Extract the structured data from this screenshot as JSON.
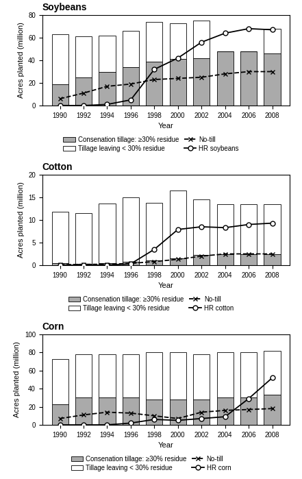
{
  "chart_data": [
    {
      "type": "bar",
      "stacked": true,
      "title": "Soybeans",
      "x_label": "Year",
      "y_label": "Acres planted (million)",
      "x": [
        1990,
        1992,
        1994,
        1996,
        1998,
        2000,
        2002,
        2004,
        2006,
        2008
      ],
      "xlim": [
        1988.5,
        2009.5
      ],
      "xticks": [
        1990,
        1992,
        1994,
        1996,
        1998,
        2000,
        2002,
        2004,
        2006,
        2008
      ],
      "ylim": [
        0,
        80
      ],
      "yticks": [
        0,
        20,
        40,
        60,
        80
      ],
      "legend": "below",
      "series": [
        {
          "name": "Consenation tillage: ≥30% residue",
          "type": "bar",
          "color": "#aaaaaa",
          "values": [
            19,
            25,
            30,
            34,
            39,
            41,
            42,
            48,
            48,
            46
          ]
        },
        {
          "name": "Tillage leaving < 30% residue",
          "type": "bar",
          "color": "#ffffff",
          "values": [
            44,
            36,
            32,
            32,
            35,
            32,
            33,
            0,
            0,
            22
          ]
        },
        {
          "name": "No-till",
          "type": "line",
          "color": "#000000",
          "marker": "x",
          "line_style": "dashed",
          "values": [
            6,
            11,
            17,
            19,
            23,
            24,
            25,
            28,
            30,
            30
          ]
        },
        {
          "name": "HR soybeans",
          "type": "line",
          "color": "#000000",
          "marker": "o",
          "line_style": "solid",
          "values": [
            0,
            0,
            1,
            5,
            32,
            42,
            56,
            64,
            68,
            67
          ]
        }
      ]
    },
    {
      "type": "bar",
      "stacked": true,
      "title": "Cotton",
      "x_label": "Year",
      "y_label": "Acres planted (million)",
      "x": [
        1990,
        1992,
        1994,
        1996,
        1998,
        2000,
        2002,
        2004,
        2006,
        2008
      ],
      "xlim": [
        1988.5,
        2009.5
      ],
      "xticks": [
        1990,
        1992,
        1994,
        1996,
        1998,
        2000,
        2002,
        2004,
        2006,
        2008
      ],
      "ylim": [
        0,
        20
      ],
      "yticks": [
        0,
        5,
        10,
        15,
        20
      ],
      "legend": "below",
      "series": [
        {
          "name": "Consenation tillage: ≥30% residue",
          "type": "bar",
          "color": "#aaaaaa",
          "values": [
            0.4,
            0.3,
            0.5,
            0.7,
            1.0,
            1.5,
            2.2,
            2.5,
            2.5,
            2.5
          ]
        },
        {
          "name": "Tillage leaving < 30% residue",
          "type": "bar",
          "color": "#ffffff",
          "values": [
            11.4,
            11.2,
            13.2,
            14.3,
            12.8,
            15.0,
            12.3,
            11.0,
            11.0,
            11.0
          ]
        },
        {
          "name": "No-till",
          "type": "line",
          "color": "#000000",
          "marker": "x",
          "line_style": "dashed",
          "values": [
            0.1,
            0.2,
            0.2,
            0.4,
            0.8,
            1.3,
            2.0,
            2.5,
            2.5,
            2.5
          ]
        },
        {
          "name": "HR cotton",
          "type": "line",
          "color": "#000000",
          "marker": "o",
          "line_style": "solid",
          "values": [
            0,
            0,
            0,
            0.3,
            3.5,
            7.9,
            8.5,
            8.3,
            9.0,
            9.3
          ]
        }
      ]
    },
    {
      "type": "bar",
      "stacked": true,
      "title": "Corn",
      "x_label": "Year",
      "y_label": "Acres planted (million)",
      "x": [
        1990,
        1992,
        1994,
        1996,
        1998,
        2000,
        2002,
        2004,
        2006,
        2008
      ],
      "xlim": [
        1988.5,
        2009.5
      ],
      "xticks": [
        1990,
        1992,
        1994,
        1996,
        1998,
        2000,
        2002,
        2004,
        2006,
        2008
      ],
      "ylim": [
        0,
        100
      ],
      "yticks": [
        0,
        20,
        40,
        60,
        80,
        100
      ],
      "legend": "below",
      "series": [
        {
          "name": "Consenation tillage: ≥30% residue",
          "type": "bar",
          "color": "#aaaaaa",
          "values": [
            23,
            30,
            30,
            30,
            28,
            28,
            28,
            30,
            30,
            33
          ]
        },
        {
          "name": "Tillage leaving < 30% residue",
          "type": "bar",
          "color": "#ffffff",
          "values": [
            50,
            48,
            48,
            48,
            52,
            52,
            50,
            50,
            50,
            49
          ]
        },
        {
          "name": "No-till",
          "type": "line",
          "color": "#000000",
          "marker": "x",
          "line_style": "dashed",
          "values": [
            7,
            11,
            14,
            13,
            10,
            7,
            14,
            16,
            17,
            18
          ]
        },
        {
          "name": "HR corn",
          "type": "line",
          "color": "#000000",
          "marker": "o",
          "line_style": "solid",
          "values": [
            0,
            0,
            0,
            2,
            6,
            5,
            7,
            9,
            29,
            52
          ]
        }
      ]
    }
  ]
}
